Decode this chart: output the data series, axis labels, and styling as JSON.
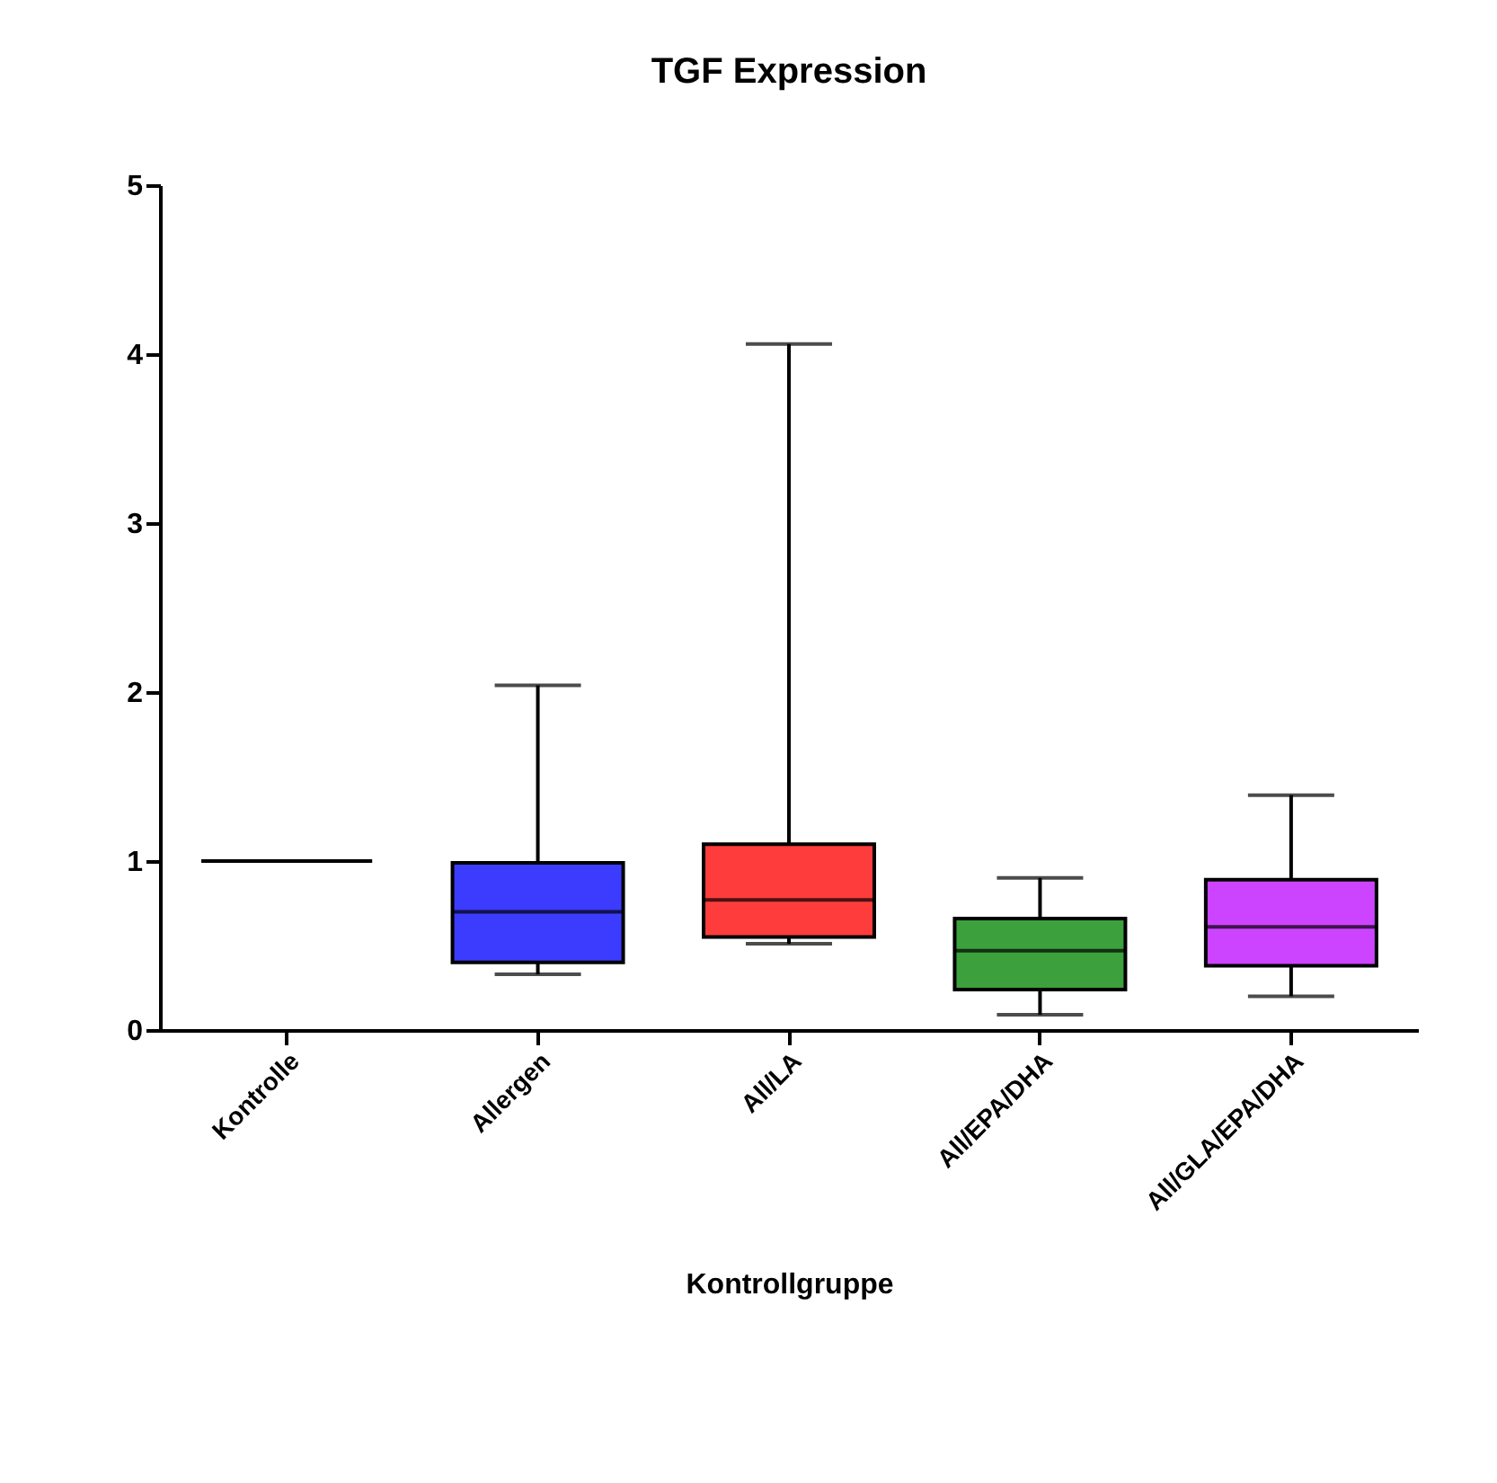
{
  "chart_data": {
    "type": "box",
    "title": "TGF Expression",
    "xlabel": "Kontrollgruppe",
    "categories": [
      "Kontrolle",
      "Allergen",
      "All/LA",
      "All/EPA/DHA",
      "All/GLA/EPA/DHA"
    ],
    "colors": [
      "#000000",
      "#3c3cff",
      "#ff3c3c",
      "#3ca03c",
      "#cc44ff"
    ],
    "boxes": [
      {
        "low": 1.0,
        "q1": 1.0,
        "median": 1.0,
        "q3": 1.0,
        "high": 1.0
      },
      {
        "low": 0.33,
        "q1": 0.4,
        "median": 0.7,
        "q3": 0.99,
        "high": 2.04
      },
      {
        "low": 0.51,
        "q1": 0.55,
        "median": 0.77,
        "q3": 1.1,
        "high": 4.06
      },
      {
        "low": 0.09,
        "q1": 0.24,
        "median": 0.47,
        "q3": 0.66,
        "high": 0.9
      },
      {
        "low": 0.2,
        "q1": 0.38,
        "median": 0.61,
        "q3": 0.89,
        "high": 1.39
      }
    ],
    "ylim": [
      0,
      5
    ],
    "yticks": [
      0,
      1,
      2,
      3,
      4,
      5
    ],
    "grid": false
  }
}
